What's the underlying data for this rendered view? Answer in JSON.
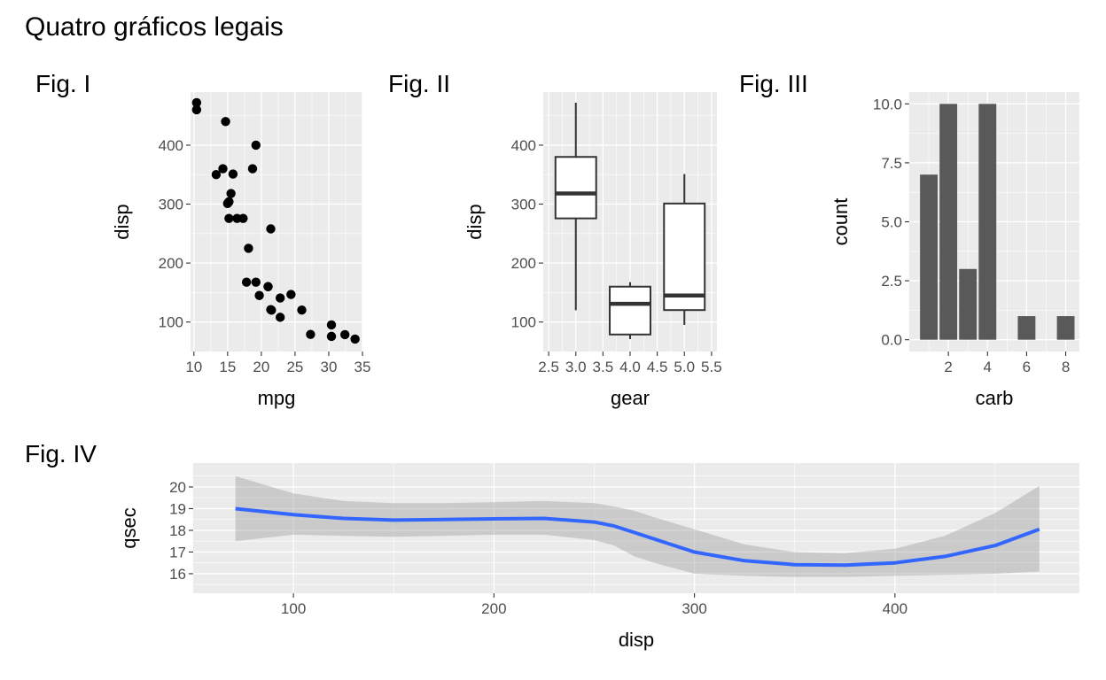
{
  "title": "Quatro gráficos legais",
  "chart_data": [
    {
      "tag": "Fig. I",
      "type": "scatter",
      "xlabel": "mpg",
      "ylabel": "disp",
      "xlim": [
        9.5,
        35
      ],
      "ylim": [
        50,
        490
      ],
      "xticks": [
        10,
        15,
        20,
        25,
        30,
        35
      ],
      "yticks": [
        100,
        200,
        300,
        400
      ],
      "points": [
        [
          21.0,
          160
        ],
        [
          21.0,
          160
        ],
        [
          22.8,
          108
        ],
        [
          21.4,
          258
        ],
        [
          18.7,
          360
        ],
        [
          18.1,
          225
        ],
        [
          14.3,
          360
        ],
        [
          24.4,
          146.7
        ],
        [
          22.8,
          140.8
        ],
        [
          19.2,
          167.6
        ],
        [
          17.8,
          167.6
        ],
        [
          16.4,
          275.8
        ],
        [
          17.3,
          275.8
        ],
        [
          15.2,
          275.8
        ],
        [
          10.4,
          472
        ],
        [
          10.4,
          460
        ],
        [
          14.7,
          440
        ],
        [
          32.4,
          78.7
        ],
        [
          30.4,
          75.7
        ],
        [
          33.9,
          71.1
        ],
        [
          21.5,
          120.1
        ],
        [
          15.5,
          318
        ],
        [
          15.2,
          304
        ],
        [
          13.3,
          350
        ],
        [
          19.2,
          400
        ],
        [
          27.3,
          79
        ],
        [
          26.0,
          120.3
        ],
        [
          30.4,
          95.1
        ],
        [
          15.8,
          351
        ],
        [
          19.7,
          145
        ],
        [
          15.0,
          301
        ],
        [
          21.4,
          121
        ]
      ]
    },
    {
      "tag": "Fig. II",
      "type": "box",
      "xlabel": "gear",
      "ylabel": "disp",
      "xlim": [
        2.4,
        5.6
      ],
      "ylim": [
        50,
        490
      ],
      "xticks": [
        2.5,
        3.0,
        3.5,
        4.0,
        4.5,
        5.0,
        5.5
      ],
      "xtick_labels": [
        "2.5",
        "3.0",
        "3.5",
        "4.0",
        "4.5",
        "5.0",
        "5.5"
      ],
      "yticks": [
        100,
        200,
        300,
        400
      ],
      "boxes": [
        {
          "x": 3,
          "lower": 120.1,
          "q1": 275.8,
          "median": 318,
          "q3": 380,
          "upper": 472
        },
        {
          "x": 4,
          "lower": 71.1,
          "q1": 78.85,
          "median": 130.9,
          "q3": 160,
          "upper": 167.6
        },
        {
          "x": 5,
          "lower": 95.1,
          "q1": 120.3,
          "median": 145,
          "q3": 301,
          "upper": 351
        }
      ]
    },
    {
      "tag": "Fig. III",
      "type": "bar",
      "xlabel": "carb",
      "ylabel": "count",
      "xlim": [
        0,
        8.7
      ],
      "ylim": [
        -0.5,
        10.5
      ],
      "xticks": [
        2,
        4,
        6,
        8
      ],
      "yticks": [
        0,
        2.5,
        5,
        7.5,
        10
      ],
      "ytick_labels": [
        "0.0",
        "2.5",
        "5.0",
        "7.5",
        "10.0"
      ],
      "categories": [
        1,
        2,
        3,
        4,
        6,
        8
      ],
      "values": [
        7,
        10,
        3,
        10,
        1,
        1
      ]
    },
    {
      "tag": "Fig. IV",
      "type": "line",
      "xlabel": "disp",
      "ylabel": "qsec",
      "xlim": [
        50,
        492
      ],
      "ylim": [
        15.1,
        21.1
      ],
      "xticks": [
        100,
        200,
        300,
        400
      ],
      "yticks": [
        16,
        17,
        18,
        19,
        20
      ],
      "line_color": "#3366ff",
      "x": [
        71.1,
        100,
        125,
        150,
        175,
        200,
        225,
        250,
        260,
        270,
        280,
        300,
        325,
        350,
        375,
        400,
        425,
        450,
        472
      ],
      "y": [
        19.0,
        18.72,
        18.55,
        18.47,
        18.5,
        18.53,
        18.55,
        18.38,
        18.2,
        17.9,
        17.6,
        17.0,
        16.6,
        16.42,
        16.4,
        16.5,
        16.8,
        17.3,
        18.05
      ],
      "band_lower": [
        17.5,
        17.8,
        17.75,
        17.7,
        17.75,
        17.8,
        17.8,
        17.55,
        17.3,
        16.8,
        16.5,
        16.0,
        15.9,
        15.85,
        15.85,
        15.9,
        15.95,
        16.0,
        16.1
      ],
      "band_upper": [
        20.5,
        19.7,
        19.35,
        19.25,
        19.25,
        19.3,
        19.35,
        19.25,
        19.1,
        18.9,
        18.6,
        18.05,
        17.35,
        17.0,
        16.95,
        17.15,
        17.75,
        18.8,
        20.05
      ]
    }
  ]
}
